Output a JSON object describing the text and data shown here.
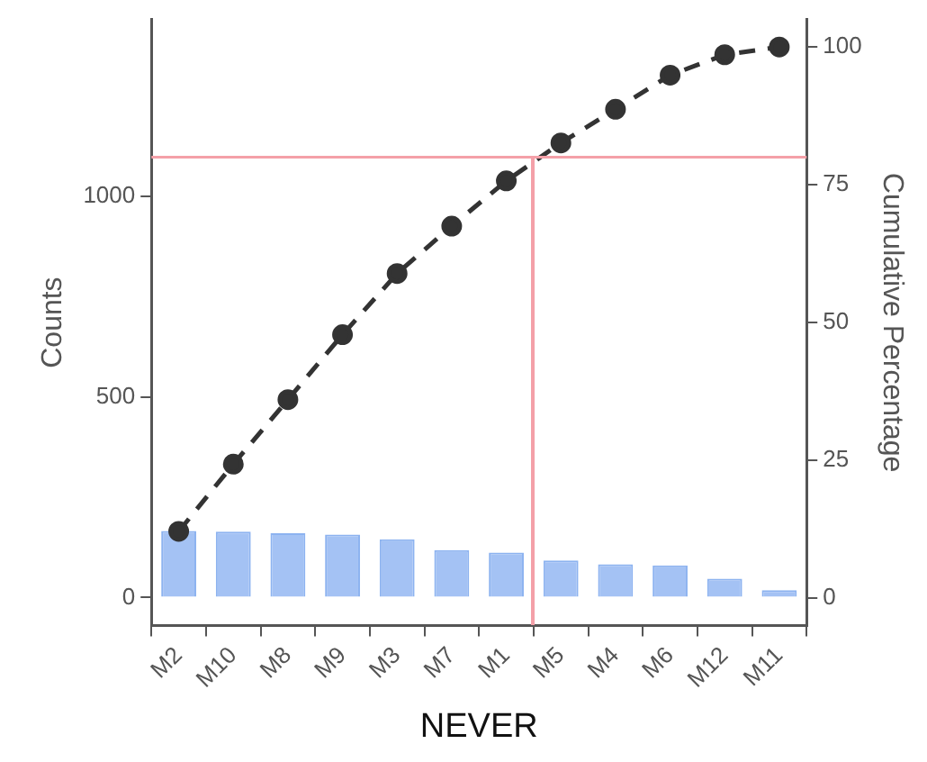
{
  "chart_data": {
    "type": "bar",
    "xlabel": "NEVER",
    "ylabel": "Counts",
    "y2label": "Cumulative Percentage",
    "categories": [
      "M2",
      "M10",
      "M8",
      "M9",
      "M3",
      "M7",
      "M1",
      "M5",
      "M4",
      "M6",
      "M12",
      "M11"
    ],
    "series": [
      {
        "color": "#a4c2f4",
        "values": [
          166,
          164,
          160,
          157,
          145,
          118,
          112,
          92,
          83,
          80,
          47,
          18
        ]
      },
      {
        "type": "line",
        "axis": "y2",
        "color": "#333333",
        "values": [
          12.1,
          24.3,
          36,
          47.8,
          58.9,
          67.5,
          75.7,
          82.6,
          88.7,
          94.9,
          98.6,
          100
        ]
      }
    ],
    "ylim": [
      -70,
      1440
    ],
    "yticks": [
      0,
      500,
      1000
    ],
    "y2lim": [
      -5,
      105
    ],
    "y2ticks": [
      0,
      25,
      50,
      75,
      100
    ],
    "ref_lines": [
      {
        "axis": "y2",
        "value": 80,
        "color": "#f4a0a8"
      }
    ],
    "grid": false,
    "legend": false,
    "marker": "circle",
    "line_style": "dashed"
  }
}
